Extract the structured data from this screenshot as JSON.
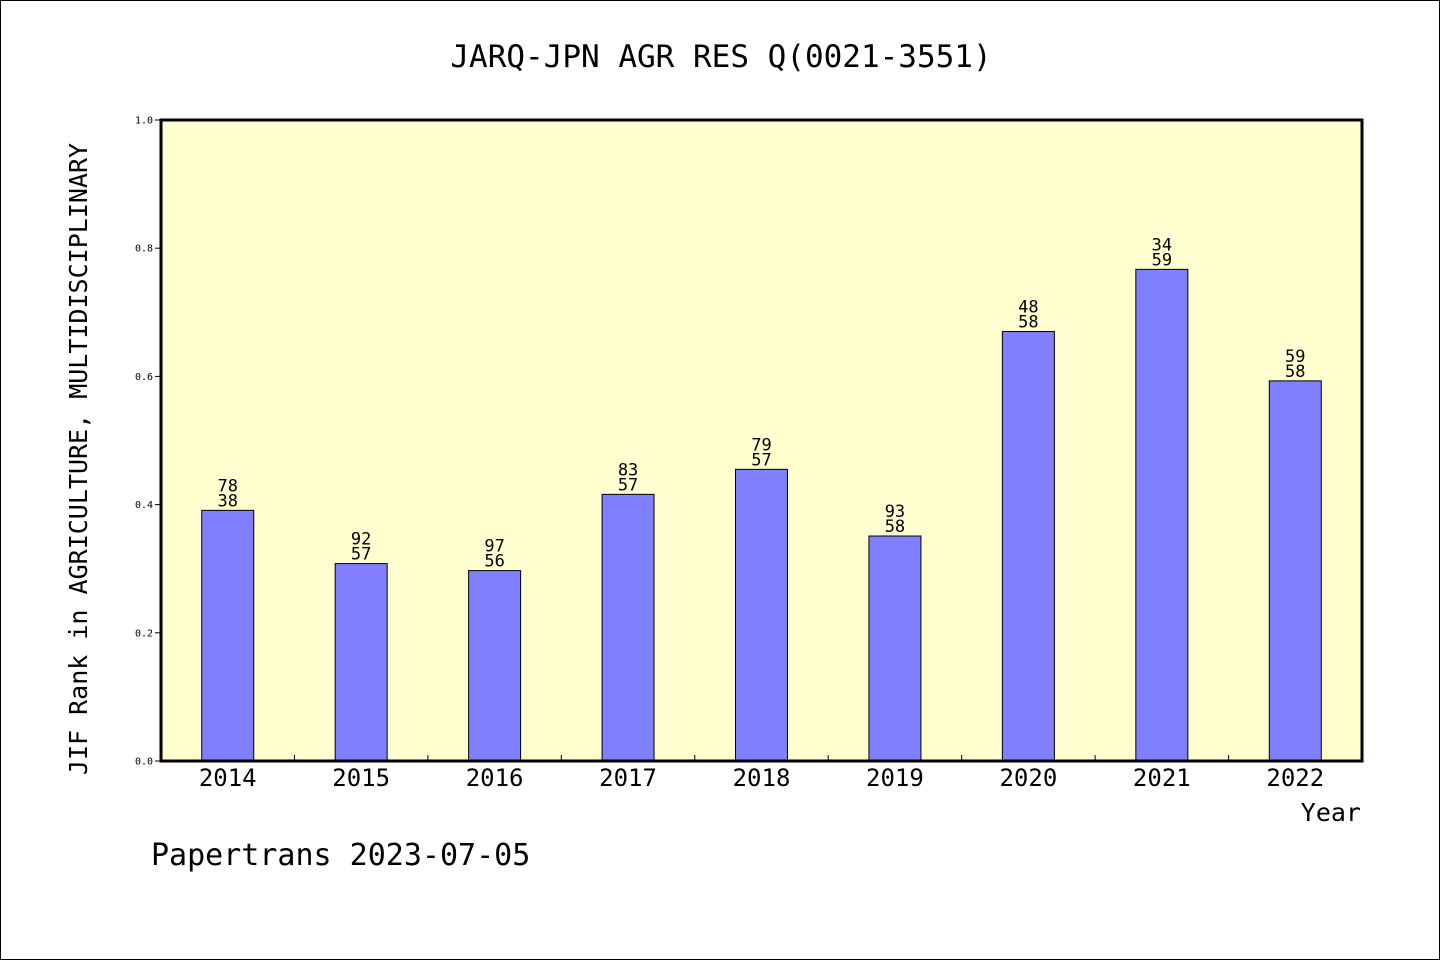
{
  "chart_data": {
    "type": "bar",
    "title": "JARQ-JPN AGR RES Q(0021-3551)",
    "xlabel": "Year",
    "ylabel": "JIF Rank in AGRICULTURE, MULTIDISCIPLINARY",
    "ylim": [
      0,
      1.0
    ],
    "yticks": [
      "0.0",
      "0.2",
      "0.4",
      "0.6",
      "0.8",
      "1.0"
    ],
    "categories": [
      "2014",
      "2015",
      "2016",
      "2017",
      "2018",
      "2019",
      "2020",
      "2021",
      "2022"
    ],
    "values": [
      0.391,
      0.308,
      0.297,
      0.416,
      0.455,
      0.351,
      0.67,
      0.767,
      0.593
    ],
    "bar_labels": [
      [
        "78",
        "38"
      ],
      [
        "92",
        "57"
      ],
      [
        "97",
        "56"
      ],
      [
        "83",
        "57"
      ],
      [
        "79",
        "57"
      ],
      [
        "93",
        "58"
      ],
      [
        "48",
        "58"
      ],
      [
        "34",
        "59"
      ],
      [
        "59",
        "58"
      ]
    ],
    "grid": false,
    "colors": {
      "plot_background": "#ffffd0",
      "bar_fill": "#8080ff",
      "bar_stroke": "#000000"
    }
  },
  "footer": {
    "text": "Papertrans 2023-07-05"
  }
}
